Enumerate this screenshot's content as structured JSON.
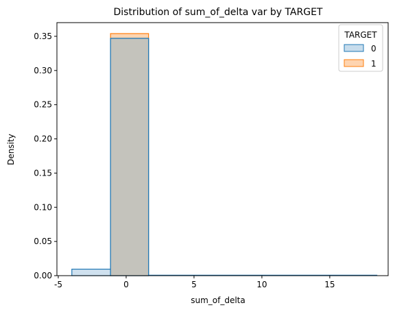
{
  "chart_data": {
    "type": "bar",
    "title": "Distribution of sum_of_delta var by TARGET",
    "xlabel": "sum_of_delta",
    "ylabel": "Density",
    "xlim": [
      -5.1,
      19.3
    ],
    "ylim": [
      0,
      0.37
    ],
    "xticks": [
      -5,
      0,
      5,
      10,
      15
    ],
    "yticks": [
      0.0,
      0.05,
      0.1,
      0.15,
      0.2,
      0.25,
      0.3,
      0.35
    ],
    "ytick_labels": [
      "0.00",
      "0.05",
      "0.10",
      "0.15",
      "0.20",
      "0.25",
      "0.30",
      "0.35"
    ],
    "legend": {
      "title": "TARGET",
      "placement": "top-right"
    },
    "series": [
      {
        "name": "0",
        "color": "#1f77b4",
        "fill": "#c7dcec",
        "bins": [
          {
            "x0": -4.0,
            "x1": -1.15,
            "value": 0.0095
          },
          {
            "x0": -1.15,
            "x1": 1.65,
            "value": 0.347
          },
          {
            "x0": 1.65,
            "x1": 18.5,
            "value": 0.0
          }
        ]
      },
      {
        "name": "1",
        "color": "#ff7f0e",
        "fill": "#fed4b0",
        "bins": [
          {
            "x0": -1.15,
            "x1": 1.65,
            "value": 0.354
          }
        ]
      }
    ]
  }
}
